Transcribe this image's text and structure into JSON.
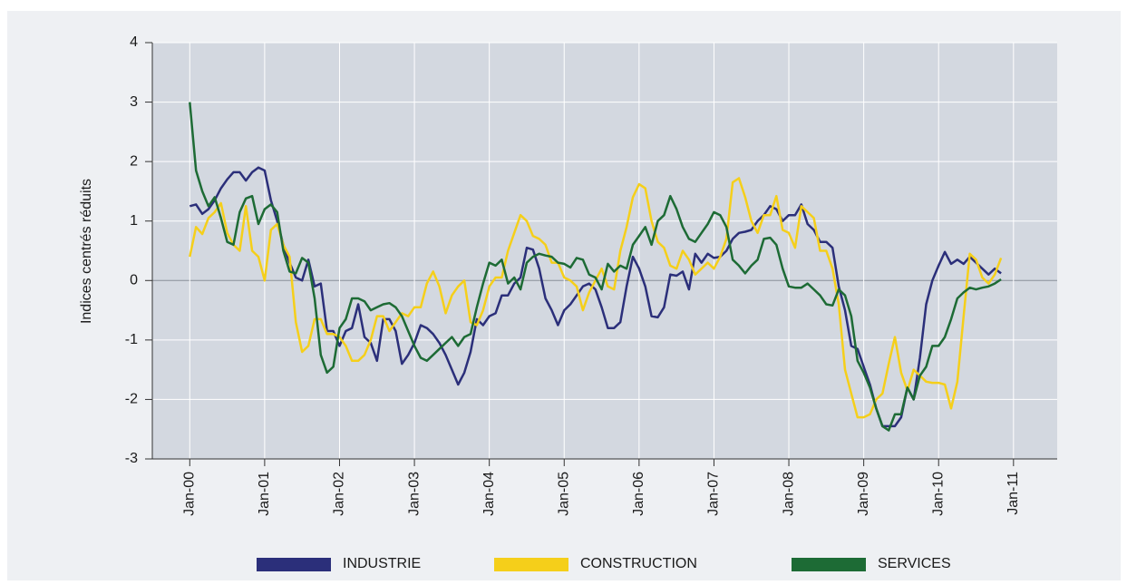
{
  "chart_data": {
    "type": "line",
    "y_label": "Indices centrés réduits",
    "x": [
      "2000-01",
      "2000-02",
      "2000-03",
      "2000-04",
      "2000-05",
      "2000-06",
      "2000-07",
      "2000-08",
      "2000-09",
      "2000-10",
      "2000-11",
      "2000-12",
      "2001-01",
      "2001-02",
      "2001-03",
      "2001-04",
      "2001-05",
      "2001-06",
      "2001-07",
      "2001-08",
      "2001-09",
      "2001-10",
      "2001-11",
      "2001-12",
      "2002-01",
      "2002-02",
      "2002-03",
      "2002-04",
      "2002-05",
      "2002-06",
      "2002-07",
      "2002-08",
      "2002-09",
      "2002-10",
      "2002-11",
      "2002-12",
      "2003-01",
      "2003-02",
      "2003-03",
      "2003-04",
      "2003-05",
      "2003-06",
      "2003-07",
      "2003-08",
      "2003-09",
      "2003-10",
      "2003-11",
      "2003-12",
      "2004-01",
      "2004-02",
      "2004-03",
      "2004-04",
      "2004-05",
      "2004-06",
      "2004-07",
      "2004-08",
      "2004-09",
      "2004-10",
      "2004-11",
      "2004-12",
      "2005-01",
      "2005-02",
      "2005-03",
      "2005-04",
      "2005-05",
      "2005-06",
      "2005-07",
      "2005-08",
      "2005-09",
      "2005-10",
      "2005-11",
      "2005-12",
      "2006-01",
      "2006-02",
      "2006-03",
      "2006-04",
      "2006-05",
      "2006-06",
      "2006-07",
      "2006-08",
      "2006-09",
      "2006-10",
      "2006-11",
      "2006-12",
      "2007-01",
      "2007-02",
      "2007-03",
      "2007-04",
      "2007-05",
      "2007-06",
      "2007-07",
      "2007-08",
      "2007-09",
      "2007-10",
      "2007-11",
      "2007-12",
      "2008-01",
      "2008-02",
      "2008-03",
      "2008-04",
      "2008-05",
      "2008-06",
      "2008-07",
      "2008-08",
      "2008-09",
      "2008-10",
      "2008-11",
      "2008-12",
      "2009-01",
      "2009-02",
      "2009-03",
      "2009-04",
      "2009-05",
      "2009-06",
      "2009-07",
      "2009-08",
      "2009-09",
      "2009-10",
      "2009-11",
      "2009-12",
      "2010-01",
      "2010-02",
      "2010-03",
      "2010-04",
      "2010-05",
      "2010-06",
      "2010-07",
      "2010-08",
      "2010-09",
      "2010-10",
      "2010-11"
    ],
    "series": [
      {
        "name": "INDUSTRIE",
        "color": "#2b2f7a",
        "values": [
          1.25,
          1.28,
          1.12,
          1.2,
          1.35,
          1.55,
          1.7,
          1.82,
          1.82,
          1.68,
          1.82,
          1.9,
          1.85,
          1.35,
          1.0,
          0.6,
          0.3,
          0.05,
          0.0,
          0.35,
          -0.1,
          -0.05,
          -0.85,
          -0.85,
          -1.1,
          -0.85,
          -0.8,
          -0.4,
          -0.95,
          -1.05,
          -1.35,
          -0.65,
          -0.65,
          -0.85,
          -1.4,
          -1.25,
          -1.05,
          -0.75,
          -0.8,
          -0.9,
          -1.05,
          -1.25,
          -1.5,
          -1.75,
          -1.55,
          -1.2,
          -0.65,
          -0.75,
          -0.6,
          -0.55,
          -0.25,
          -0.25,
          -0.05,
          0.05,
          0.55,
          0.52,
          0.2,
          -0.3,
          -0.5,
          -0.75,
          -0.5,
          -0.4,
          -0.25,
          -0.1,
          -0.05,
          -0.15,
          -0.45,
          -0.8,
          -0.8,
          -0.7,
          -0.1,
          0.4,
          0.2,
          -0.1,
          -0.6,
          -0.62,
          -0.45,
          0.1,
          0.08,
          0.15,
          -0.15,
          0.45,
          0.3,
          0.45,
          0.38,
          0.4,
          0.5,
          0.7,
          0.8,
          0.82,
          0.85,
          1.0,
          1.1,
          1.25,
          1.2,
          1.0,
          1.1,
          1.1,
          1.28,
          0.95,
          0.85,
          0.65,
          0.65,
          0.55,
          -0.1,
          -0.5,
          -1.1,
          -1.15,
          -1.45,
          -1.75,
          -2.15,
          -2.45,
          -2.45,
          -2.45,
          -2.3,
          -1.8,
          -2.0,
          -1.3,
          -0.4,
          0.0,
          0.25,
          0.48,
          0.28,
          0.35,
          0.28,
          0.4,
          0.3,
          0.2,
          0.1,
          0.2,
          0.12
        ]
      },
      {
        "name": "CONSTRUCTION",
        "color": "#f5cf1a",
        "values": [
          0.4,
          0.9,
          0.78,
          1.05,
          1.15,
          1.3,
          0.8,
          0.6,
          0.5,
          1.25,
          0.5,
          0.4,
          0.0,
          0.85,
          0.95,
          0.6,
          0.4,
          -0.7,
          -1.2,
          -1.1,
          -0.65,
          -0.65,
          -0.9,
          -0.9,
          -0.95,
          -1.1,
          -1.35,
          -1.35,
          -1.25,
          -1.0,
          -0.6,
          -0.6,
          -0.85,
          -0.7,
          -0.55,
          -0.6,
          -0.45,
          -0.45,
          -0.05,
          0.15,
          -0.1,
          -0.55,
          -0.25,
          -0.1,
          0.0,
          -0.7,
          -0.75,
          -0.5,
          -0.1,
          0.05,
          0.05,
          0.5,
          0.8,
          1.1,
          1.0,
          0.75,
          0.7,
          0.6,
          0.3,
          0.3,
          0.05,
          0.0,
          -0.1,
          -0.5,
          -0.2,
          0.0,
          0.2,
          -0.1,
          -0.15,
          0.5,
          0.9,
          1.4,
          1.62,
          1.55,
          1.0,
          0.65,
          0.55,
          0.25,
          0.2,
          0.5,
          0.35,
          0.1,
          0.2,
          0.3,
          0.2,
          0.4,
          0.7,
          1.65,
          1.72,
          1.4,
          1.0,
          0.8,
          1.1,
          1.1,
          1.42,
          0.85,
          0.8,
          0.55,
          1.25,
          1.15,
          1.05,
          0.5,
          0.5,
          0.2,
          -0.4,
          -1.5,
          -1.9,
          -2.3,
          -2.3,
          -2.25,
          -2.0,
          -1.9,
          -1.4,
          -0.95,
          -1.55,
          -1.85,
          -1.5,
          -1.6,
          -1.7,
          -1.72,
          -1.72,
          -1.75,
          -2.15,
          -1.7,
          -0.6,
          0.45,
          0.35,
          0.05,
          -0.05,
          0.1,
          0.38
        ]
      },
      {
        "name": "SERVICES",
        "color": "#1d6b35",
        "values": [
          3.0,
          1.85,
          1.5,
          1.25,
          1.4,
          1.05,
          0.65,
          0.6,
          1.15,
          1.38,
          1.42,
          0.95,
          1.2,
          1.28,
          1.15,
          0.5,
          0.15,
          0.12,
          0.38,
          0.3,
          -0.3,
          -1.25,
          -1.55,
          -1.45,
          -0.8,
          -0.65,
          -0.3,
          -0.3,
          -0.35,
          -0.5,
          -0.45,
          -0.4,
          -0.38,
          -0.45,
          -0.6,
          -0.85,
          -1.1,
          -1.3,
          -1.35,
          -1.25,
          -1.15,
          -1.05,
          -0.95,
          -1.1,
          -0.95,
          -0.9,
          -0.45,
          -0.05,
          0.3,
          0.25,
          0.35,
          -0.05,
          0.05,
          -0.15,
          0.3,
          0.4,
          0.45,
          0.42,
          0.4,
          0.3,
          0.28,
          0.22,
          0.38,
          0.35,
          0.1,
          0.05,
          -0.15,
          0.28,
          0.15,
          0.25,
          0.2,
          0.6,
          0.75,
          0.9,
          0.6,
          1.0,
          1.1,
          1.42,
          1.2,
          0.9,
          0.7,
          0.65,
          0.8,
          0.95,
          1.15,
          1.1,
          0.9,
          0.35,
          0.25,
          0.12,
          0.25,
          0.35,
          0.7,
          0.72,
          0.6,
          0.2,
          -0.1,
          -0.12,
          -0.12,
          -0.05,
          -0.15,
          -0.25,
          -0.4,
          -0.42,
          -0.15,
          -0.25,
          -0.6,
          -1.35,
          -1.55,
          -1.8,
          -2.15,
          -2.45,
          -2.52,
          -2.25,
          -2.25,
          -1.8,
          -2.0,
          -1.6,
          -1.45,
          -1.1,
          -1.1,
          -0.95,
          -0.65,
          -0.3,
          -0.2,
          -0.12,
          -0.15,
          -0.12,
          -0.1,
          -0.05,
          0.02
        ]
      }
    ],
    "xlim": [
      "1999-07",
      "2011-08"
    ],
    "xticks": [
      {
        "value": "2000-01",
        "label": "Jan-00"
      },
      {
        "value": "2001-01",
        "label": "Jan-01"
      },
      {
        "value": "2002-01",
        "label": "Jan-02"
      },
      {
        "value": "2003-01",
        "label": "Jan-03"
      },
      {
        "value": "2004-01",
        "label": "Jan-04"
      },
      {
        "value": "2005-01",
        "label": "Jan-05"
      },
      {
        "value": "2006-01",
        "label": "Jan-06"
      },
      {
        "value": "2007-01",
        "label": "Jan-07"
      },
      {
        "value": "2008-01",
        "label": "Jan-08"
      },
      {
        "value": "2009-01",
        "label": "Jan-09"
      },
      {
        "value": "2010-01",
        "label": "Jan-10"
      },
      {
        "value": "2011-01",
        "label": "Jan-11"
      }
    ],
    "ylim": [
      -3,
      4
    ],
    "yticks": [
      -3,
      -2,
      -1,
      0,
      1,
      2,
      3,
      4
    ],
    "grid": true
  }
}
